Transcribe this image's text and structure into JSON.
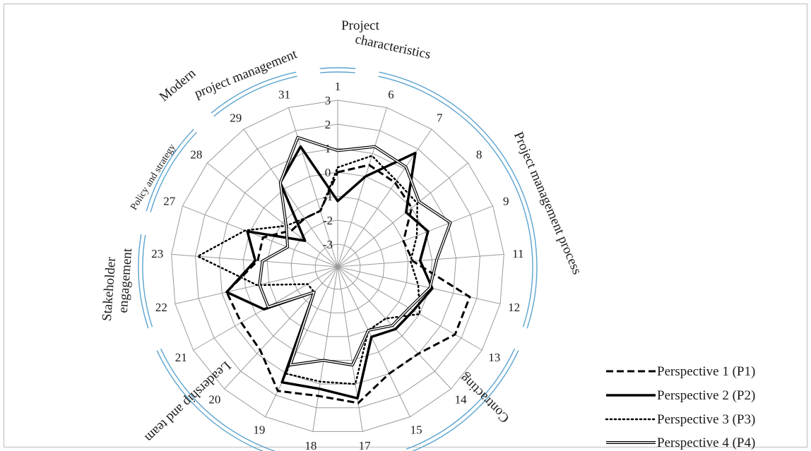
{
  "chart_data": {
    "type": "radar",
    "categories": [
      "1",
      "6",
      "7",
      "8",
      "9",
      "11",
      "12",
      "13",
      "14",
      "15",
      "17",
      "18",
      "19",
      "20",
      "21",
      "22",
      "23",
      "27",
      "28",
      "29",
      "31"
    ],
    "r_ticks": [
      "-3",
      "-2",
      "-1",
      "0",
      "1",
      "2",
      "3"
    ],
    "rlim": [
      -3,
      3
    ],
    "series": [
      {
        "name": "Perspective 1 (P1)",
        "style": "dashed",
        "values": [
          0.0,
          0.5,
          0.3,
          0.0,
          -1.0,
          -0.8,
          1.7,
          1.7,
          1.0,
          1.0,
          1.8,
          1.5,
          1.8,
          0.8,
          0.7,
          0.8,
          -0.6,
          -0.6,
          -1.5,
          -1.5,
          -1.5
        ]
      },
      {
        "name": "Perspective 2 (P2)",
        "style": "solid-thick",
        "values": [
          -1.2,
          0.0,
          1.8,
          -0.3,
          0.1,
          -0.5,
          0.1,
          -0.3,
          -0.4,
          -0.7,
          1.6,
          1.2,
          1.4,
          -2.5,
          -0.4,
          0.8,
          -0.5,
          0.1,
          -2.2,
          0.3,
          1.3
        ]
      },
      {
        "name": "Perspective 3 (P3)",
        "style": "dotted",
        "values": [
          0.2,
          0.9,
          0.4,
          0.3,
          -0.4,
          -0.9,
          -0.5,
          0.0,
          -1.0,
          -1.0,
          1.0,
          0.9,
          1.0,
          -2.5,
          -2.5,
          -0.5,
          1.9,
          0.2,
          -1.2,
          -1.5,
          -1.5
        ]
      },
      {
        "name": "Perspective 4 (P4)",
        "style": "double",
        "values": [
          0.9,
          1.3,
          1.1,
          0.4,
          1.1,
          0.2,
          0.0,
          -0.5,
          -0.6,
          -1.0,
          0.2,
          0.0,
          0.6,
          -2.5,
          -0.6,
          -0.6,
          -0.8,
          -1.7,
          -1.2,
          0.3,
          1.7
        ]
      }
    ],
    "groups": [
      {
        "name": "Project characteristics",
        "lines": [
          "Project",
          "characteristics"
        ]
      },
      {
        "name": "Project management process",
        "lines": [
          "Project management process"
        ]
      },
      {
        "name": "Contracting",
        "lines": [
          "Contracting"
        ]
      },
      {
        "name": "Leadership and team",
        "lines": [
          "Leadership and team"
        ]
      },
      {
        "name": "Stakeholder engagement",
        "lines": [
          "Stakeholder",
          "engagement"
        ]
      },
      {
        "name": "Policy and strategy",
        "lines": [
          "Policy and strategy"
        ]
      },
      {
        "name": "Modern project management",
        "lines": [
          "Modern",
          "project management"
        ]
      }
    ],
    "accent_color": "#5ba3cf",
    "grid": true,
    "legend": "bottom-right"
  }
}
